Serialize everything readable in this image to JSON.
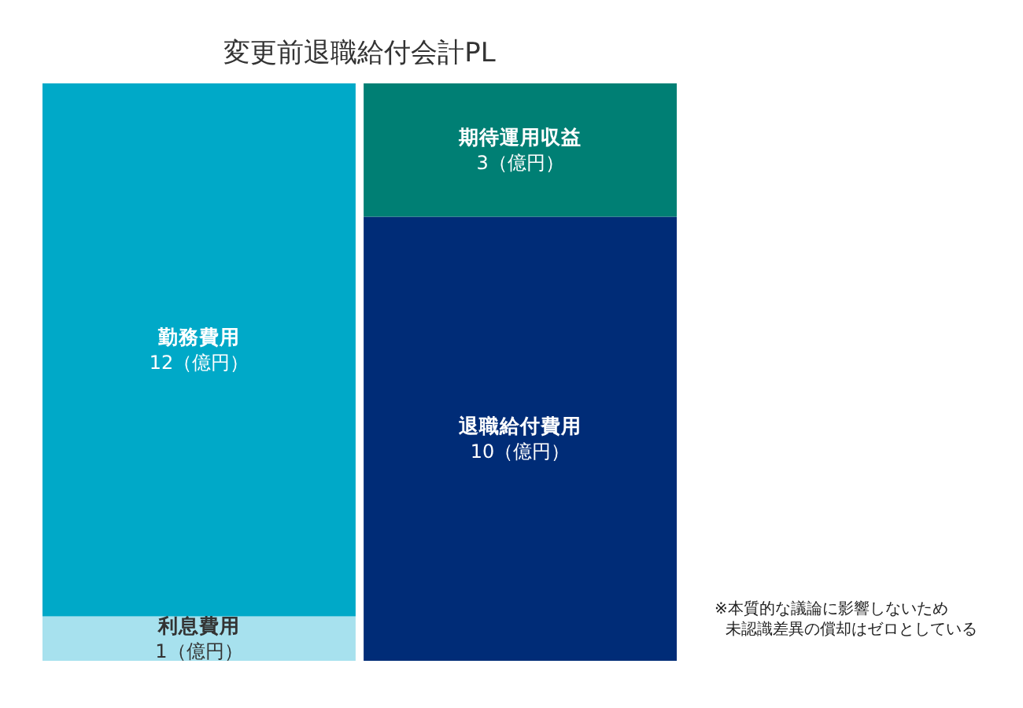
{
  "chart_data": {
    "type": "bar",
    "title": "変更前退職給付会計PL",
    "stacked": true,
    "tick_labels": false,
    "legend": false,
    "categories": [
      null,
      null
    ],
    "series": [
      {
        "name": "利息費用",
        "color": "#a7e1ee",
        "values": [
          1,
          null
        ],
        "value_labels": [
          "1（億円）",
          null
        ]
      },
      {
        "name": "勤務費用",
        "color": "#00a9c8",
        "values": [
          12,
          null
        ],
        "value_labels": [
          "12（億円）",
          null
        ]
      },
      {
        "name": "退職給付費用",
        "color": "#002c77",
        "values": [
          null,
          10
        ],
        "value_labels": [
          null,
          "10（億円）"
        ]
      },
      {
        "name": "期待運用収益",
        "color": "#007f74",
        "values": [
          null,
          3
        ],
        "value_labels": [
          null,
          "3（億円）"
        ]
      }
    ],
    "annotations": [
      "※本質的な議論に影響しないため",
      "未認識差異の償却はゼロとしている"
    ]
  }
}
